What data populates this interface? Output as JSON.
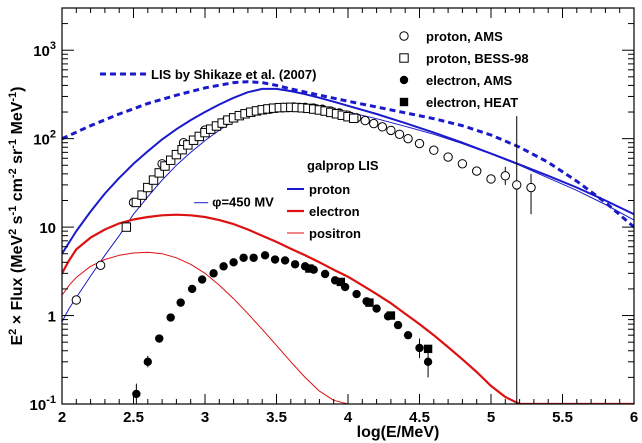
{
  "chart_data": {
    "type": "line",
    "xlabel": "log(E/MeV)",
    "ylabel_parts": {
      "pre": "E",
      "pre_sup": "2",
      "mid": " × Flux (MeV",
      "mid_sup": "2",
      "s": " s",
      "s_sup": "-1",
      "cm": " cm",
      "cm_sup": "-2",
      "sr": " sr",
      "sr_sup": "-1",
      "mev": " MeV",
      "mev_sup": "-1",
      "close": ")"
    },
    "xlim": [
      2,
      6
    ],
    "ylim": [
      0.1,
      3000
    ],
    "y_log": true,
    "grid": false,
    "x_ticks": [
      {
        "v": 2,
        "label": "2"
      },
      {
        "v": 2.5,
        "label": "2.5"
      },
      {
        "v": 3,
        "label": "3"
      },
      {
        "v": 3.5,
        "label": "3.5"
      },
      {
        "v": 4,
        "label": "4"
      },
      {
        "v": 4.5,
        "label": "4.5"
      },
      {
        "v": 5,
        "label": "5"
      },
      {
        "v": 5.5,
        "label": "5.5"
      },
      {
        "v": 6,
        "label": "6"
      }
    ],
    "y_ticks": [
      {
        "v": 0.1,
        "base": "10",
        "exp": "-1"
      },
      {
        "v": 1,
        "base": "1",
        "exp": ""
      },
      {
        "v": 10,
        "base": "10",
        "exp": ""
      },
      {
        "v": 100,
        "base": "10",
        "exp": "2"
      },
      {
        "v": 1000,
        "base": "10",
        "exp": "3"
      }
    ],
    "legend_markers": [
      {
        "marker": "open-circle",
        "label": "proton, AMS"
      },
      {
        "marker": "open-square",
        "label": "proton, BESS-98"
      },
      {
        "marker": "filled-circle",
        "label": "electron, AMS"
      },
      {
        "marker": "filled-square",
        "label": "electron, HEAT"
      }
    ],
    "legend_lis_label": "LIS by Shikaze et al. (2007)",
    "galprop_title": "galprop LIS",
    "legend_lines": [
      {
        "color": "#1a1acc",
        "width": 2,
        "label": "proton"
      },
      {
        "color": "#dd1111",
        "width": 2.2,
        "label": "electron"
      },
      {
        "color": "#dd1111",
        "width": 1,
        "label": "positron"
      }
    ],
    "phi_annotation": {
      "symbol": "φ",
      "label": "=450 MV",
      "x": 3.05,
      "y": 17
    },
    "colors": {
      "proton": "#1a1acc",
      "electron": "#dd1111"
    },
    "series": [
      {
        "style": "line",
        "color": "#1a1acc",
        "width": 2,
        "dashed": false,
        "x": [
          2.0,
          2.1,
          2.2,
          2.3,
          2.4,
          2.5,
          2.6,
          2.7,
          2.8,
          2.9,
          3.0,
          3.1,
          3.2,
          3.3,
          3.4,
          3.5,
          3.6,
          3.7,
          3.8,
          3.9,
          4.0,
          4.2,
          4.4,
          4.6,
          4.8,
          5.0,
          5.2,
          5.4,
          5.6,
          5.8,
          6.0
        ],
        "y": [
          5,
          9,
          15,
          24,
          36,
          52,
          72,
          98,
          128,
          162,
          200,
          243,
          290,
          335,
          365,
          365,
          345,
          318,
          290,
          262,
          235,
          190,
          150,
          117,
          90,
          68,
          51,
          38,
          28,
          20,
          14
        ]
      },
      {
        "style": "line",
        "color": "#1a1acc",
        "width": 3,
        "dashed": true,
        "x": [
          2.0,
          2.2,
          2.4,
          2.6,
          2.8,
          3.0,
          3.2,
          3.3,
          3.4,
          3.5,
          3.6,
          3.8,
          4.0,
          4.2,
          4.4,
          4.6,
          4.8,
          5.0,
          5.2,
          5.4,
          5.6,
          5.8,
          6.0
        ],
        "y": [
          100,
          140,
          190,
          250,
          310,
          375,
          430,
          440,
          430,
          400,
          365,
          310,
          265,
          228,
          196,
          168,
          140,
          110,
          80,
          54,
          33,
          19,
          10
        ]
      },
      {
        "style": "line",
        "color": "#1a1acc",
        "width": 1,
        "dashed": false,
        "x": [
          2.0,
          2.05,
          2.1,
          2.2,
          2.3,
          2.4,
          2.5,
          2.6,
          2.7,
          2.8,
          2.9,
          3.0,
          3.1,
          3.2,
          3.3,
          3.4,
          3.5,
          3.6,
          3.7,
          3.8,
          3.9,
          4.0,
          4.2,
          4.4,
          4.6,
          4.8,
          5.0,
          5.2,
          5.4,
          5.6,
          5.8,
          6.0
        ],
        "y": [
          0.85,
          1.2,
          1.6,
          2.8,
          4.8,
          8,
          14,
          22,
          34,
          50,
          70,
          95,
          125,
          158,
          195,
          225,
          245,
          250,
          245,
          232,
          218,
          200,
          168,
          138,
          112,
          88,
          67,
          50,
          36,
          26,
          18,
          12
        ]
      },
      {
        "style": "line",
        "color": "#dd1111",
        "width": 2.2,
        "dashed": false,
        "x": [
          2.0,
          2.05,
          2.1,
          2.2,
          2.3,
          2.4,
          2.5,
          2.6,
          2.7,
          2.8,
          2.9,
          3.0,
          3.1,
          3.2,
          3.3,
          3.4,
          3.5,
          3.6,
          3.7,
          3.8,
          3.9,
          4.0,
          4.1,
          4.2,
          4.3,
          4.4,
          4.5,
          4.6,
          4.7,
          4.8,
          4.9,
          5.0,
          5.1,
          5.2,
          6.0
        ],
        "y": [
          3.0,
          4.2,
          5.6,
          7.6,
          9.4,
          11.0,
          12.2,
          13.0,
          13.6,
          13.8,
          13.6,
          13.0,
          12.0,
          10.8,
          9.4,
          8.0,
          6.8,
          5.7,
          4.8,
          4.0,
          3.3,
          2.75,
          2.2,
          1.75,
          1.38,
          1.05,
          0.8,
          0.6,
          0.44,
          0.32,
          0.23,
          0.16,
          0.12,
          0.1,
          0.1
        ]
      },
      {
        "style": "line",
        "color": "#dd1111",
        "width": 1,
        "dashed": false,
        "x": [
          2.0,
          2.05,
          2.1,
          2.2,
          2.3,
          2.4,
          2.5,
          2.6,
          2.7,
          2.8,
          2.9,
          3.0,
          3.1,
          3.2,
          3.3,
          3.4,
          3.5,
          3.6,
          3.7,
          3.8,
          3.9,
          4.0,
          4.05
        ],
        "y": [
          1.7,
          2.2,
          2.7,
          3.6,
          4.3,
          4.8,
          5.1,
          5.2,
          5.0,
          4.5,
          3.8,
          3.0,
          2.2,
          1.55,
          1.05,
          0.7,
          0.46,
          0.3,
          0.2,
          0.14,
          0.11,
          0.1,
          0.1
        ]
      },
      {
        "style": "marker",
        "marker": "open-circle",
        "color": "#000000",
        "x": [
          2.1,
          2.27,
          2.5,
          2.7,
          2.85,
          3.0,
          3.15,
          3.3,
          3.45,
          3.55,
          3.62,
          3.7,
          3.76,
          3.82,
          3.88,
          3.94,
          4.0,
          4.06,
          4.12,
          4.18,
          4.24,
          4.3,
          4.36,
          4.42,
          4.5,
          4.6,
          4.7,
          4.8,
          4.9,
          5.0,
          5.1,
          5.18,
          5.28
        ],
        "y": [
          1.5,
          3.7,
          19,
          52,
          90,
          125,
          160,
          195,
          215,
          225,
          228,
          226,
          222,
          215,
          205,
          195,
          184,
          172,
          160,
          148,
          136,
          124,
          112,
          100,
          88,
          74,
          62,
          52,
          43,
          35,
          38,
          30,
          28
        ],
        "err_low": [
          0,
          0,
          0,
          0,
          0,
          0,
          0,
          0,
          0,
          0,
          0,
          0,
          0,
          0,
          0,
          0,
          0,
          0,
          0,
          0,
          0,
          0,
          0,
          0,
          0,
          0,
          0,
          0,
          0,
          0,
          8,
          29.9,
          14
        ],
        "err_high": [
          0,
          0,
          0,
          0,
          0,
          0,
          0,
          0,
          0,
          0,
          0,
          0,
          0,
          0,
          0,
          0,
          0,
          0,
          0,
          0,
          0,
          0,
          0,
          0,
          0,
          0,
          0,
          0,
          0,
          0,
          10,
          150,
          12
        ]
      },
      {
        "style": "marker",
        "marker": "open-square",
        "color": "#000000",
        "x": [
          2.45,
          2.52,
          2.56,
          2.6,
          2.64,
          2.68,
          2.72,
          2.76,
          2.8,
          2.84,
          2.88,
          2.92,
          2.96,
          3.0,
          3.04,
          3.08,
          3.12,
          3.16,
          3.2,
          3.24,
          3.28,
          3.32,
          3.36,
          3.4,
          3.44,
          3.48,
          3.52,
          3.56,
          3.6,
          3.64,
          3.68,
          3.72,
          3.76,
          3.8,
          3.84,
          3.88,
          3.92,
          3.96,
          4.0,
          4.04
        ],
        "y": [
          10,
          19,
          23,
          28,
          34,
          41,
          49,
          57,
          66,
          75,
          85,
          96,
          106,
          117,
          128,
          139,
          150,
          162,
          172,
          182,
          191,
          199,
          206,
          212,
          217,
          221,
          224,
          225,
          226,
          225,
          223,
          220,
          216,
          211,
          205,
          198,
          191,
          184,
          177,
          170
        ]
      },
      {
        "style": "marker",
        "marker": "filled-circle",
        "color": "#000000",
        "x": [
          2.52,
          2.6,
          2.68,
          2.76,
          2.83,
          2.91,
          2.98,
          3.06,
          3.13,
          3.2,
          3.27,
          3.34,
          3.42,
          3.49,
          3.56,
          3.63,
          3.7,
          3.76,
          3.84,
          3.91,
          3.98,
          4.06,
          4.13,
          4.2,
          4.28,
          4.35,
          4.42,
          4.5,
          4.56
        ],
        "y": [
          0.13,
          0.3,
          0.55,
          0.95,
          1.4,
          2.0,
          2.55,
          3.0,
          3.6,
          4.0,
          4.5,
          4.5,
          4.8,
          4.3,
          4.2,
          3.8,
          3.6,
          3.3,
          2.95,
          2.5,
          2.1,
          1.75,
          1.45,
          1.2,
          0.98,
          0.78,
          0.6,
          0.43,
          0.3
        ],
        "err_low": [
          0.03,
          0.04,
          0,
          0,
          0,
          0,
          0,
          0,
          0,
          0,
          0,
          0,
          0,
          0,
          0,
          0,
          0,
          0,
          0,
          0,
          0,
          0,
          0,
          0,
          0,
          0,
          0,
          0.1,
          0.1
        ],
        "err_high": [
          0.04,
          0.05,
          0,
          0,
          0,
          0,
          0,
          0,
          0,
          0,
          0,
          0,
          0,
          0,
          0,
          0,
          0,
          0,
          0,
          0,
          0,
          0,
          0,
          0,
          0,
          0,
          0,
          0.12,
          0.15
        ]
      },
      {
        "style": "marker",
        "marker": "filled-square",
        "color": "#000000",
        "x": [
          3.73,
          3.95,
          4.15,
          4.3,
          4.56
        ],
        "y": [
          3.4,
          2.4,
          1.4,
          1.0,
          0.42
        ]
      }
    ]
  }
}
